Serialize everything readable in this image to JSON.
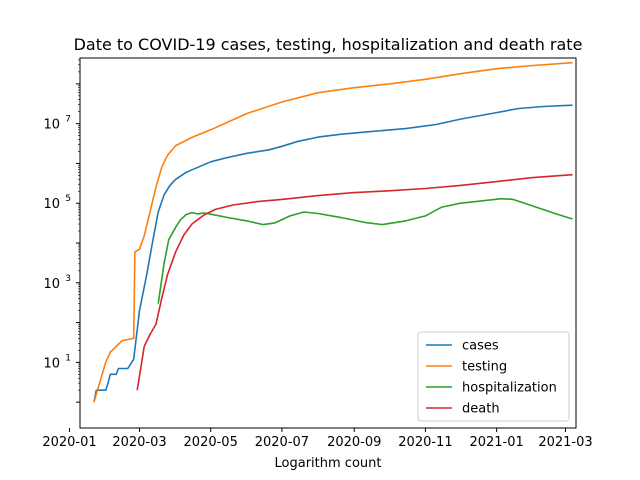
{
  "chart_data": {
    "type": "line",
    "title": "Date to COVID-19 cases, testing, hospitalization and death rate",
    "xlabel": "Logarithm count",
    "ylabel": "",
    "yscale": "log",
    "xlim": [
      "2020-01-10",
      "2021-03-10"
    ],
    "ylim_log10": [
      -0.65,
      8.65
    ],
    "x_ticks": [
      "2020-01",
      "2020-03",
      "2020-05",
      "2020-07",
      "2020-09",
      "2020-11",
      "2021-01",
      "2021-03"
    ],
    "y_ticks": [
      {
        "label_base": "10",
        "label_exp": "1",
        "value": 10
      },
      {
        "label_base": "10",
        "label_exp": "3",
        "value": 1000
      },
      {
        "label_base": "10",
        "label_exp": "5",
        "value": 100000
      },
      {
        "label_base": "10",
        "label_exp": "7",
        "value": 10000000
      }
    ],
    "legend": {
      "position": "lower right"
    },
    "grid": false,
    "series": [
      {
        "name": "cases",
        "color": "#1f77b4",
        "points": [
          [
            "2020-01-22",
            1
          ],
          [
            "2020-01-24",
            2
          ],
          [
            "2020-02-01",
            2
          ],
          [
            "2020-02-03",
            3
          ],
          [
            "2020-02-05",
            5
          ],
          [
            "2020-02-10",
            5
          ],
          [
            "2020-02-12",
            7
          ],
          [
            "2020-02-20",
            7
          ],
          [
            "2020-02-25",
            12
          ],
          [
            "2020-03-01",
            200
          ],
          [
            "2020-03-07",
            1500
          ],
          [
            "2020-03-12",
            10000
          ],
          [
            "2020-03-17",
            60000
          ],
          [
            "2020-03-22",
            160000
          ],
          [
            "2020-03-27",
            280000
          ],
          [
            "2020-04-01",
            400000
          ],
          [
            "2020-04-10",
            600000
          ],
          [
            "2020-04-20",
            800000
          ],
          [
            "2020-05-01",
            1100000
          ],
          [
            "2020-05-15",
            1400000
          ],
          [
            "2020-06-01",
            1800000
          ],
          [
            "2020-06-20",
            2200000
          ],
          [
            "2020-07-01",
            2700000
          ],
          [
            "2020-07-15",
            3600000
          ],
          [
            "2020-08-01",
            4600000
          ],
          [
            "2020-08-20",
            5400000
          ],
          [
            "2020-09-15",
            6300000
          ],
          [
            "2020-10-15",
            7500000
          ],
          [
            "2020-11-10",
            9500000
          ],
          [
            "2020-12-01",
            13000000
          ],
          [
            "2021-01-01",
            19000000
          ],
          [
            "2021-01-20",
            24000000
          ],
          [
            "2021-02-10",
            27000000
          ],
          [
            "2021-03-07",
            29000000
          ]
        ]
      },
      {
        "name": "testing",
        "color": "#ff7f0e",
        "points": [
          [
            "2020-01-22",
            1
          ],
          [
            "2020-01-25",
            2
          ],
          [
            "2020-01-28",
            4
          ],
          [
            "2020-02-01",
            10
          ],
          [
            "2020-02-05",
            18
          ],
          [
            "2020-02-10",
            25
          ],
          [
            "2020-02-15",
            35
          ],
          [
            "2020-02-25",
            40
          ],
          [
            "2020-02-26",
            6000
          ],
          [
            "2020-03-01",
            7000
          ],
          [
            "2020-03-05",
            15000
          ],
          [
            "2020-03-10",
            60000
          ],
          [
            "2020-03-15",
            250000
          ],
          [
            "2020-03-20",
            800000
          ],
          [
            "2020-03-25",
            1600000
          ],
          [
            "2020-04-01",
            2800000
          ],
          [
            "2020-04-15",
            4500000
          ],
          [
            "2020-05-01",
            7000000
          ],
          [
            "2020-06-01",
            18000000
          ],
          [
            "2020-07-01",
            35000000
          ],
          [
            "2020-08-01",
            60000000
          ],
          [
            "2020-09-01",
            80000000
          ],
          [
            "2020-10-01",
            100000000
          ],
          [
            "2020-11-01",
            130000000
          ],
          [
            "2020-12-01",
            180000000
          ],
          [
            "2021-01-01",
            240000000
          ],
          [
            "2021-02-01",
            290000000
          ],
          [
            "2021-03-07",
            340000000
          ]
        ]
      },
      {
        "name": "hospitalization",
        "color": "#2ca02c",
        "points": [
          [
            "2020-03-17",
            300
          ],
          [
            "2020-03-22",
            3000
          ],
          [
            "2020-03-26",
            12000
          ],
          [
            "2020-04-01",
            25000
          ],
          [
            "2020-04-05",
            38000
          ],
          [
            "2020-04-10",
            52000
          ],
          [
            "2020-04-15",
            58000
          ],
          [
            "2020-04-20",
            54000
          ],
          [
            "2020-04-25",
            57000
          ],
          [
            "2020-05-01",
            53000
          ],
          [
            "2020-05-15",
            44000
          ],
          [
            "2020-06-01",
            36000
          ],
          [
            "2020-06-15",
            29000
          ],
          [
            "2020-06-25",
            32000
          ],
          [
            "2020-07-08",
            48000
          ],
          [
            "2020-07-20",
            60000
          ],
          [
            "2020-08-01",
            55000
          ],
          [
            "2020-08-20",
            44000
          ],
          [
            "2020-09-10",
            33000
          ],
          [
            "2020-09-25",
            29000
          ],
          [
            "2020-10-15",
            36000
          ],
          [
            "2020-11-01",
            48000
          ],
          [
            "2020-11-15",
            80000
          ],
          [
            "2020-12-01",
            100000
          ],
          [
            "2020-12-20",
            115000
          ],
          [
            "2021-01-05",
            130000
          ],
          [
            "2021-01-15",
            125000
          ],
          [
            "2021-02-01",
            85000
          ],
          [
            "2021-02-20",
            55000
          ],
          [
            "2021-03-07",
            40000
          ]
        ]
      },
      {
        "name": "death",
        "color": "#d62728",
        "points": [
          [
            "2020-02-28",
            2
          ],
          [
            "2020-03-02",
            7
          ],
          [
            "2020-03-05",
            25
          ],
          [
            "2020-03-10",
            50
          ],
          [
            "2020-03-15",
            90
          ],
          [
            "2020-03-20",
            400
          ],
          [
            "2020-03-25",
            1600
          ],
          [
            "2020-04-01",
            6000
          ],
          [
            "2020-04-08",
            16000
          ],
          [
            "2020-04-15",
            30000
          ],
          [
            "2020-04-25",
            50000
          ],
          [
            "2020-05-05",
            70000
          ],
          [
            "2020-05-20",
            90000
          ],
          [
            "2020-06-10",
            110000
          ],
          [
            "2020-07-01",
            125000
          ],
          [
            "2020-08-01",
            155000
          ],
          [
            "2020-09-01",
            185000
          ],
          [
            "2020-10-01",
            205000
          ],
          [
            "2020-11-01",
            235000
          ],
          [
            "2020-12-01",
            280000
          ],
          [
            "2021-01-01",
            350000
          ],
          [
            "2021-02-01",
            440000
          ],
          [
            "2021-03-07",
            520000
          ]
        ]
      }
    ]
  }
}
